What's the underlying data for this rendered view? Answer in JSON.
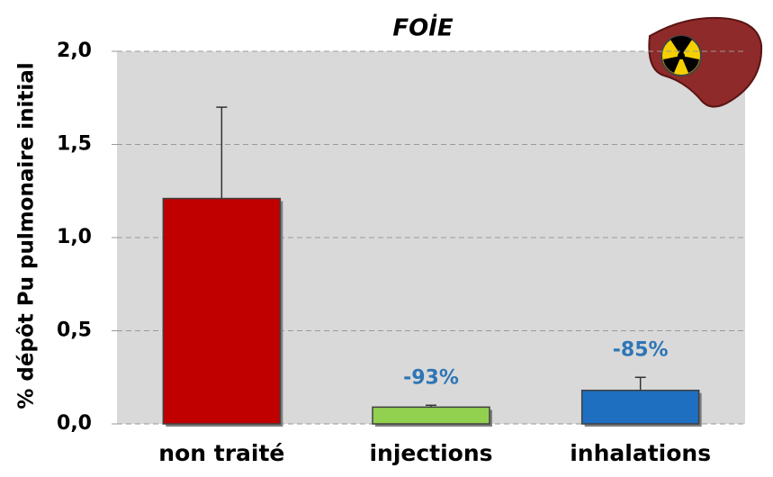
{
  "chart_data": {
    "type": "bar",
    "title": "FOİE",
    "y_label": "% dépôt Pu pulmonaire initial",
    "categories": [
      "non traité",
      "injections",
      "inhalations"
    ],
    "values": [
      1.21,
      0.09,
      0.18
    ],
    "errors": [
      0.49,
      0.01,
      0.07
    ],
    "colors": [
      "#c00000",
      "#92d050",
      "#1f6fc0"
    ],
    "annotations": [
      null,
      "-93%",
      "-85%"
    ],
    "ylim": [
      0,
      2
    ],
    "yticks": [
      {
        "value": 0,
        "label": "0,0"
      },
      {
        "value": 0.5,
        "label": "0,5"
      },
      {
        "value": 1,
        "label": "1,0"
      },
      {
        "value": 1.5,
        "label": "1,5"
      },
      {
        "value": 2,
        "label": "2,0"
      }
    ],
    "grid": true
  }
}
